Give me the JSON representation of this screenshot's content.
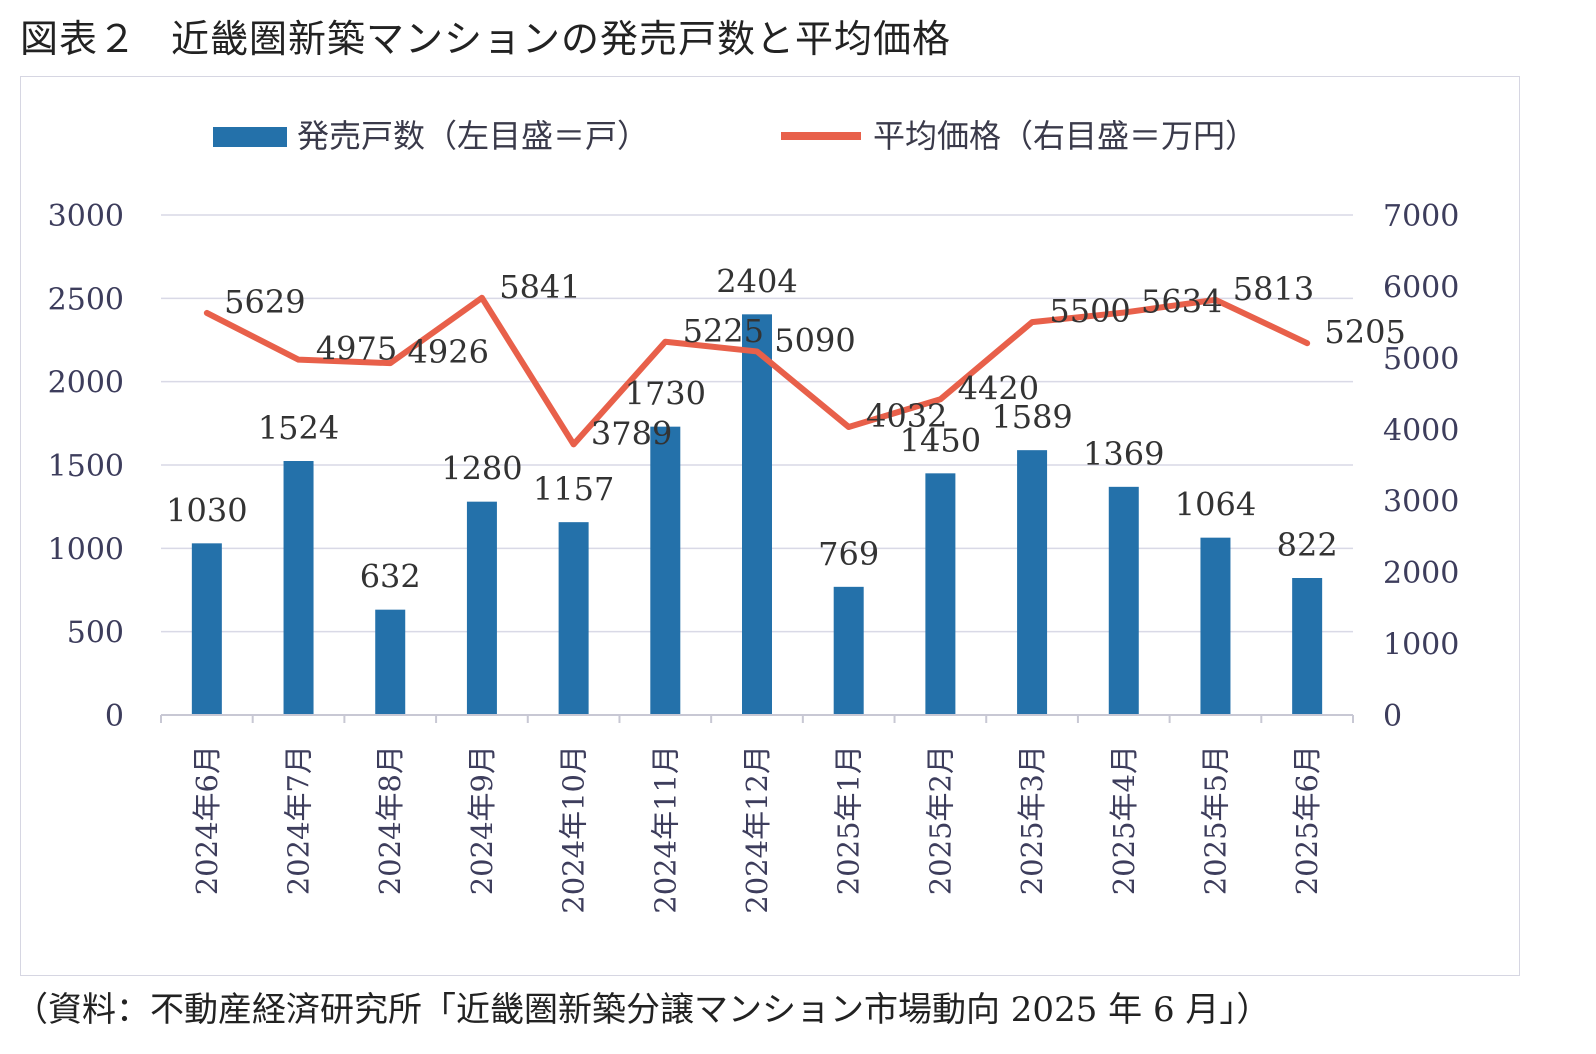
{
  "figure": {
    "label": "図表２",
    "title": "近畿圏新築マンションの発売戸数と平均価格",
    "source": "（資料：不動産経済研究所「近畿圏新築分譲マンション市場動向 2025 年 6 月」）"
  },
  "colors": {
    "bar": "#2471aa",
    "line": "#e8604a",
    "grid": "#d9d9e6",
    "axis_text": "#3d3d5c"
  },
  "chart_data": {
    "type": "bar",
    "categories": [
      "2024年6月",
      "2024年7月",
      "2024年8月",
      "2024年9月",
      "2024年10月",
      "2024年11月",
      "2024年12月",
      "2025年1月",
      "2025年2月",
      "2025年3月",
      "2025年4月",
      "2025年5月",
      "2025年6月"
    ],
    "series": [
      {
        "name": "発売戸数（左目盛＝戸）",
        "type": "bar",
        "axis": "left",
        "values": [
          1030,
          1524,
          632,
          1280,
          1157,
          1730,
          2404,
          769,
          1450,
          1589,
          1369,
          1064,
          822
        ],
        "labels": [
          "1030",
          "1524",
          "632",
          "1280",
          "1157",
          "1730",
          "2404",
          "769",
          "1450",
          "1589",
          "1369",
          "1064",
          "822"
        ]
      },
      {
        "name": "平均価格（右目盛＝万円）",
        "type": "line",
        "axis": "right",
        "values": [
          5629,
          4975,
          4926,
          5841,
          3789,
          5225,
          5090,
          4032,
          4420,
          5500,
          5634,
          5813,
          5205
        ],
        "labels": [
          "5629",
          "4975",
          "4926",
          "5841",
          "3789",
          "5225",
          "5090",
          "4032",
          "4420",
          "5500",
          "5634",
          "5813",
          "5205"
        ]
      }
    ],
    "ylim_left": [
      0,
      3000
    ],
    "yticks_left": [
      "0",
      "500",
      "1000",
      "1500",
      "2000",
      "2500",
      "3000"
    ],
    "ylim_right": [
      0,
      7000
    ],
    "yticks_right": [
      "0",
      "1000",
      "2000",
      "3000",
      "4000",
      "5000",
      "6000",
      "7000"
    ],
    "legend": [
      "発売戸数（左目盛＝戸）",
      "平均価格（右目盛＝万円）"
    ],
    "legend_position": "top",
    "grid": true
  }
}
